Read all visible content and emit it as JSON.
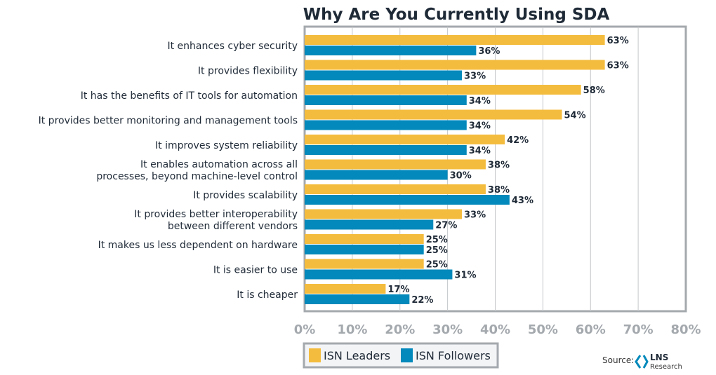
{
  "chart_data": {
    "type": "bar",
    "orientation": "horizontal",
    "title": "Why Are You Currently Using SDA",
    "categories": [
      "It enhances cyber security",
      "It provides flexibility",
      "It has the benefits of IT tools for automation",
      "It provides better monitoring and management tools",
      "It improves system reliability",
      "It enables automation across all|processes, beyond machine-level control",
      "It provides scalability",
      "It provides better interoperability|between different vendors",
      "It makes us less dependent on hardware",
      "It is easier to use",
      "It is cheaper"
    ],
    "series": [
      {
        "name": "ISN Leaders",
        "color": "#f4bc3e",
        "values": [
          63,
          63,
          58,
          54,
          42,
          38,
          38,
          33,
          25,
          25,
          17
        ]
      },
      {
        "name": "ISN Followers",
        "color": "#0389bb",
        "values": [
          36,
          33,
          34,
          34,
          34,
          30,
          43,
          27,
          25,
          31,
          22
        ]
      }
    ],
    "xlim": [
      0,
      80
    ],
    "xticks": [
      "0%",
      "10%",
      "20%",
      "30%",
      "40%",
      "50%",
      "60%",
      "70%",
      "80%"
    ],
    "grid": true,
    "legend": "bottom"
  },
  "source": {
    "label": "Source:",
    "logo_text": "LNS",
    "logo_sub": "Research"
  }
}
